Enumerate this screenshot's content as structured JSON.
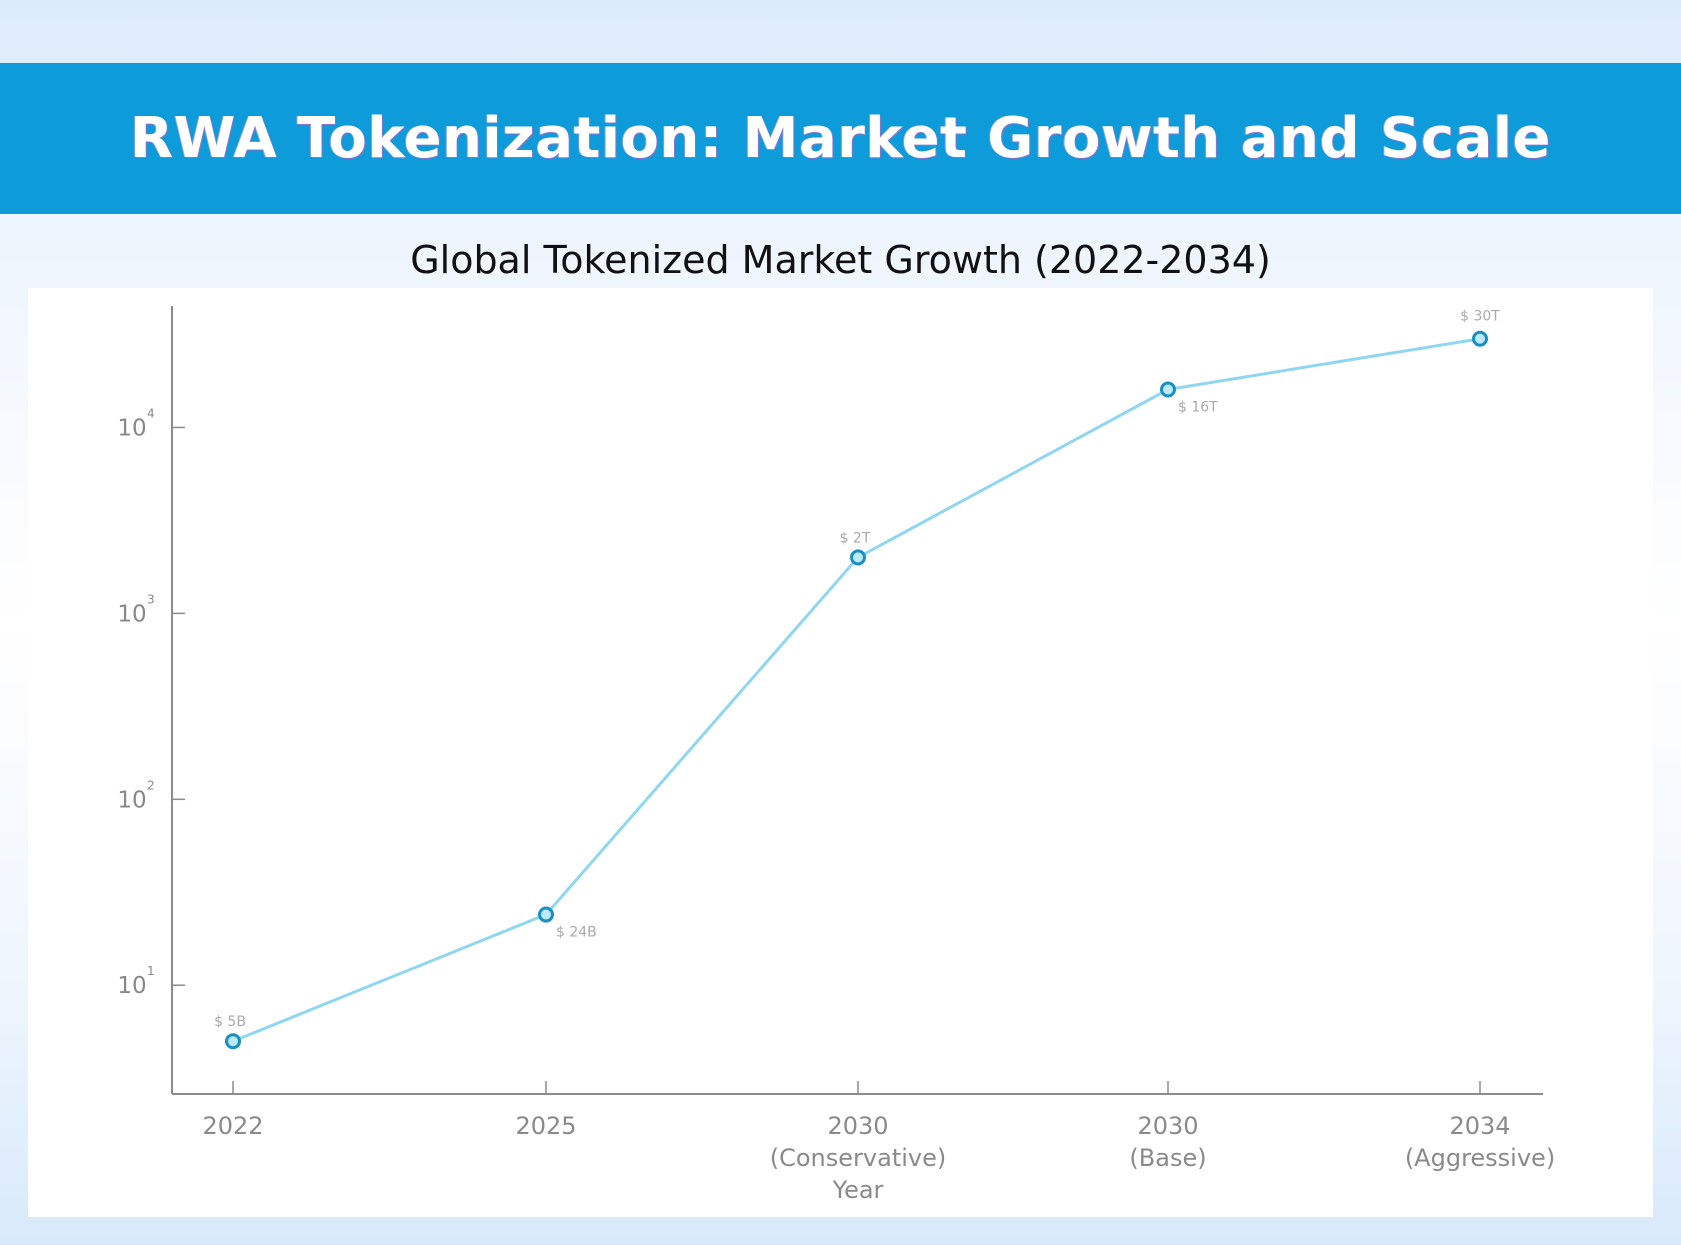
{
  "header": {
    "title": "RWA Tokenization: Market Growth and Scale"
  },
  "chart_data": {
    "type": "line",
    "title": "Global Tokenized Market Growth (2022-2034)",
    "xlabel": "Year",
    "ylabel": "",
    "yscale": "log",
    "ylim": [
      2.6,
      45000
    ],
    "yticks": [
      {
        "value": 10,
        "base": "10",
        "exp": "1"
      },
      {
        "value": 100,
        "base": "10",
        "exp": "2"
      },
      {
        "value": 1000,
        "base": "10",
        "exp": "3"
      },
      {
        "value": 10000,
        "base": "10",
        "exp": "4"
      }
    ],
    "categories": [
      [
        "2022"
      ],
      [
        "2025"
      ],
      [
        "2030",
        "(Conservative)"
      ],
      [
        "2030",
        "(Base)"
      ],
      [
        "2034",
        "(Aggressive)"
      ]
    ],
    "values": [
      5,
      24,
      2000,
      16000,
      30000
    ],
    "data_labels": [
      "$ 5B",
      "$ 24B",
      "$ 2T",
      "$ 16T",
      "$ 30T"
    ],
    "label_positions": [
      "above-left",
      "below-right",
      "above-left",
      "below-right",
      "above"
    ],
    "line_color": "#8fd7f0",
    "marker_color": "#1a8fc4"
  }
}
